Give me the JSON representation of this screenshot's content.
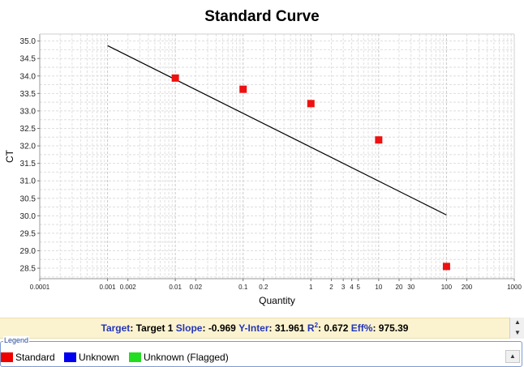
{
  "chart_data": {
    "type": "scatter",
    "title": "Standard Curve",
    "xlabel": "Quantity",
    "ylabel": "CT",
    "x_scale": "log",
    "xlim": [
      0.0001,
      1000
    ],
    "ylim": [
      28.2,
      35.2
    ],
    "grid": true,
    "x_ticks": [
      {
        "value": 0.0001,
        "label": "0.0001"
      },
      {
        "value": 0.001,
        "label": "0.001"
      },
      {
        "value": 0.002,
        "label": "0.002"
      },
      {
        "value": 0.01,
        "label": "0.01"
      },
      {
        "value": 0.02,
        "label": "0.02"
      },
      {
        "value": 0.1,
        "label": "0.1"
      },
      {
        "value": 0.2,
        "label": "0.2"
      },
      {
        "value": 1,
        "label": "1"
      },
      {
        "value": 2,
        "label": "2"
      },
      {
        "value": 3,
        "label": "3"
      },
      {
        "value": 4,
        "label": "4"
      },
      {
        "value": 5,
        "label": "5"
      },
      {
        "value": 10,
        "label": "10"
      },
      {
        "value": 20,
        "label": "20"
      },
      {
        "value": 30,
        "label": "30"
      },
      {
        "value": 100,
        "label": "100"
      },
      {
        "value": 200,
        "label": "200"
      },
      {
        "value": 1000,
        "label": "1000"
      }
    ],
    "y_ticks": [
      {
        "value": 28.5,
        "label": "28.5"
      },
      {
        "value": 29.0,
        "label": "29.0"
      },
      {
        "value": 29.5,
        "label": "29.5"
      },
      {
        "value": 30.0,
        "label": "30.0"
      },
      {
        "value": 30.5,
        "label": "30.5"
      },
      {
        "value": 31.0,
        "label": "31.0"
      },
      {
        "value": 31.5,
        "label": "31.5"
      },
      {
        "value": 32.0,
        "label": "32.0"
      },
      {
        "value": 32.5,
        "label": "32.5"
      },
      {
        "value": 33.0,
        "label": "33.0"
      },
      {
        "value": 33.5,
        "label": "33.5"
      },
      {
        "value": 34.0,
        "label": "34.0"
      },
      {
        "value": 34.5,
        "label": "34.5"
      },
      {
        "value": 35.0,
        "label": "35.0"
      }
    ],
    "series": [
      {
        "name": "Standard",
        "color": "#ee1111",
        "marker": "square",
        "points": [
          {
            "x": 0.01,
            "y": 33.94
          },
          {
            "x": 0.1,
            "y": 33.62
          },
          {
            "x": 1,
            "y": 33.21
          },
          {
            "x": 10,
            "y": 32.17
          },
          {
            "x": 100,
            "y": 28.55
          }
        ]
      }
    ],
    "fit_line": {
      "color": "#000000",
      "points": [
        {
          "x": 0.001,
          "y": 34.868
        },
        {
          "x": 100,
          "y": 30.023
        }
      ]
    }
  },
  "stats": {
    "target_key": "Target",
    "target_value": "Target 1",
    "slope_key": "Slope",
    "slope_value": "-0.969",
    "yinter_key": "Y-Inter",
    "yinter_value": "31.961",
    "r2_key_base": "R",
    "r2_key_sup": "2",
    "r2_value": "0.672",
    "eff_key": "Eff%",
    "eff_value": "975.39"
  },
  "legend": {
    "title": "Legend",
    "items": [
      {
        "label": "Standard",
        "color": "#ee0000"
      },
      {
        "label": "Unknown",
        "color": "#0000ee"
      },
      {
        "label": "Unknown (Flagged)",
        "color": "#22dd22"
      }
    ]
  },
  "icons": {
    "scroll_up": "triangle-up-icon",
    "scroll_down": "triangle-down-icon"
  }
}
